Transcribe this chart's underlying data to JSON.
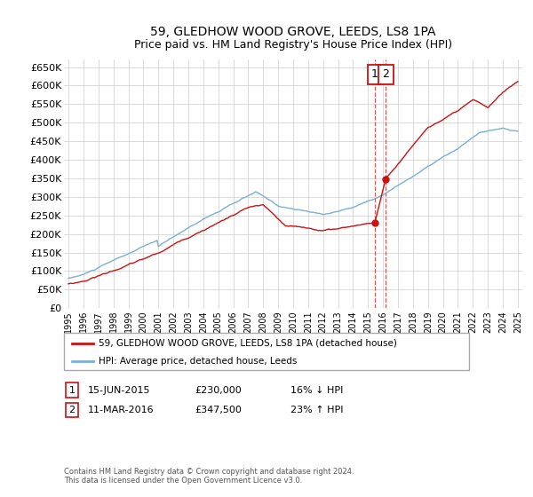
{
  "title": "59, GLEDHOW WOOD GROVE, LEEDS, LS8 1PA",
  "subtitle": "Price paid vs. HM Land Registry's House Price Index (HPI)",
  "ylim": [
    0,
    670000
  ],
  "yticks": [
    0,
    50000,
    100000,
    150000,
    200000,
    250000,
    300000,
    350000,
    400000,
    450000,
    500000,
    550000,
    600000,
    650000
  ],
  "ytick_labels": [
    "£0",
    "£50K",
    "£100K",
    "£150K",
    "£200K",
    "£250K",
    "£300K",
    "£350K",
    "£400K",
    "£450K",
    "£500K",
    "£550K",
    "£600K",
    "£650K"
  ],
  "hpi_color": "#7bafd4",
  "price_color": "#cc1111",
  "transaction1_date": 2015.45,
  "transaction1_price": 230000,
  "transaction2_date": 2016.19,
  "transaction2_price": 347500,
  "legend_entry1": "59, GLEDHOW WOOD GROVE, LEEDS, LS8 1PA (detached house)",
  "legend_entry2": "HPI: Average price, detached house, Leeds",
  "note1_date": "15-JUN-2015",
  "note1_price": "£230,000",
  "note1_hpi": "16% ↓ HPI",
  "note2_date": "11-MAR-2016",
  "note2_price": "£347,500",
  "note2_hpi": "23% ↑ HPI",
  "footer": "Contains HM Land Registry data © Crown copyright and database right 2024.\nThis data is licensed under the Open Government Licence v3.0.",
  "background_color": "#ffffff",
  "grid_color": "#cccccc"
}
